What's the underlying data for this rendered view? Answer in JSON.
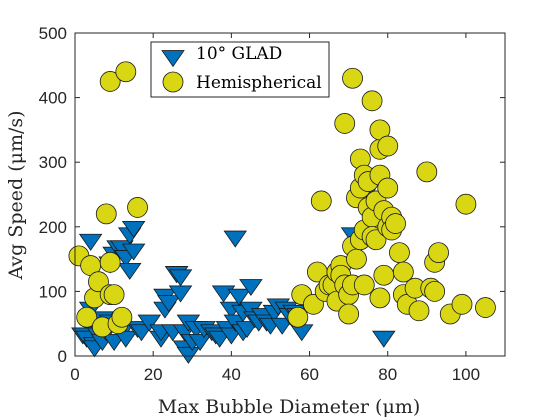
{
  "chart_data": {
    "type": "scatter",
    "xlabel": "Max Bubble Diameter (μm)",
    "ylabel": "Avg Speed (μm/s)",
    "xlim": [
      0,
      110
    ],
    "ylim": [
      0,
      500
    ],
    "xticks": [
      0,
      20,
      40,
      60,
      80,
      100
    ],
    "yticks": [
      0,
      100,
      200,
      300,
      400,
      500
    ],
    "grid": false,
    "legend_position": "top-center",
    "series": [
      {
        "name": "10° GLAD",
        "marker": "triangle-down",
        "color": "#0072BD",
        "points": [
          [
            2,
            35
          ],
          [
            3,
            30
          ],
          [
            4,
            75
          ],
          [
            4,
            55
          ],
          [
            4,
            180
          ],
          [
            5,
            20
          ],
          [
            5,
            15
          ],
          [
            6,
            45
          ],
          [
            6,
            35
          ],
          [
            7,
            25
          ],
          [
            7,
            60
          ],
          [
            8,
            40
          ],
          [
            9,
            55
          ],
          [
            9,
            145
          ],
          [
            10,
            160
          ],
          [
            10,
            25
          ],
          [
            11,
            170
          ],
          [
            12,
            40
          ],
          [
            12,
            170
          ],
          [
            13,
            30
          ],
          [
            13,
            155
          ],
          [
            14,
            190
          ],
          [
            14,
            135
          ],
          [
            15,
            200
          ],
          [
            15,
            165
          ],
          [
            16,
            45
          ],
          [
            17,
            40
          ],
          [
            19,
            55
          ],
          [
            22,
            30
          ],
          [
            22,
            40
          ],
          [
            23,
            95
          ],
          [
            23,
            75
          ],
          [
            24,
            85
          ],
          [
            25,
            40
          ],
          [
            26,
            130
          ],
          [
            26,
            130
          ],
          [
            27,
            100
          ],
          [
            27,
            125
          ],
          [
            28,
            40
          ],
          [
            28,
            15
          ],
          [
            29,
            55
          ],
          [
            29,
            5
          ],
          [
            30,
            25
          ],
          [
            31,
            45
          ],
          [
            32,
            25
          ],
          [
            33,
            45
          ],
          [
            35,
            40
          ],
          [
            36,
            35
          ],
          [
            37,
            30
          ],
          [
            38,
            100
          ],
          [
            39,
            45
          ],
          [
            40,
            35
          ],
          [
            40,
            75
          ],
          [
            41,
            55
          ],
          [
            41,
            185
          ],
          [
            42,
            95
          ],
          [
            43,
            70
          ],
          [
            43,
            40
          ],
          [
            44,
            45
          ],
          [
            45,
            110
          ],
          [
            45,
            75
          ],
          [
            46,
            60
          ],
          [
            47,
            55
          ],
          [
            48,
            65
          ],
          [
            49,
            55
          ],
          [
            50,
            50
          ],
          [
            51,
            70
          ],
          [
            52,
            80
          ],
          [
            53,
            50
          ],
          [
            54,
            75
          ],
          [
            55,
            65
          ],
          [
            56,
            70
          ],
          [
            57,
            65
          ],
          [
            58,
            40
          ],
          [
            71,
            190
          ],
          [
            74,
            250
          ],
          [
            79,
            30
          ]
        ]
      },
      {
        "name": "Hemispherical",
        "marker": "circle",
        "color": "#D9D614",
        "points": [
          [
            1,
            155
          ],
          [
            3,
            60
          ],
          [
            4,
            140
          ],
          [
            5,
            90
          ],
          [
            6,
            115
          ],
          [
            7,
            45
          ],
          [
            8,
            220
          ],
          [
            9,
            425
          ],
          [
            9,
            95
          ],
          [
            9,
            145
          ],
          [
            10,
            95
          ],
          [
            11,
            50
          ],
          [
            12,
            60
          ],
          [
            13,
            440
          ],
          [
            16,
            230
          ],
          [
            57,
            60
          ],
          [
            58,
            95
          ],
          [
            61,
            80
          ],
          [
            62,
            130
          ],
          [
            63,
            240
          ],
          [
            64,
            100
          ],
          [
            65,
            110
          ],
          [
            66,
            110
          ],
          [
            67,
            130
          ],
          [
            67,
            85
          ],
          [
            68,
            140
          ],
          [
            68,
            125
          ],
          [
            69,
            110
          ],
          [
            69,
            360
          ],
          [
            70,
            95
          ],
          [
            70,
            65
          ],
          [
            71,
            110
          ],
          [
            71,
            170
          ],
          [
            71,
            430
          ],
          [
            72,
            245
          ],
          [
            72,
            150
          ],
          [
            73,
            180
          ],
          [
            73,
            305
          ],
          [
            73,
            260
          ],
          [
            74,
            110
          ],
          [
            74,
            280
          ],
          [
            74,
            195
          ],
          [
            75,
            230
          ],
          [
            75,
            270
          ],
          [
            76,
            215
          ],
          [
            76,
            395
          ],
          [
            76,
            185
          ],
          [
            77,
            240
          ],
          [
            77,
            180
          ],
          [
            78,
            280
          ],
          [
            78,
            90
          ],
          [
            78,
            320
          ],
          [
            78,
            350
          ],
          [
            79,
            125
          ],
          [
            79,
            225
          ],
          [
            80,
            200
          ],
          [
            80,
            260
          ],
          [
            80,
            325
          ],
          [
            81,
            215
          ],
          [
            81,
            195
          ],
          [
            82,
            205
          ],
          [
            83,
            160
          ],
          [
            84,
            130
          ],
          [
            84,
            95
          ],
          [
            85,
            80
          ],
          [
            87,
            105
          ],
          [
            88,
            70
          ],
          [
            90,
            285
          ],
          [
            91,
            105
          ],
          [
            92,
            145
          ],
          [
            92,
            100
          ],
          [
            93,
            160
          ],
          [
            96,
            65
          ],
          [
            99,
            80
          ],
          [
            100,
            235
          ],
          [
            105,
            75
          ]
        ]
      }
    ]
  }
}
